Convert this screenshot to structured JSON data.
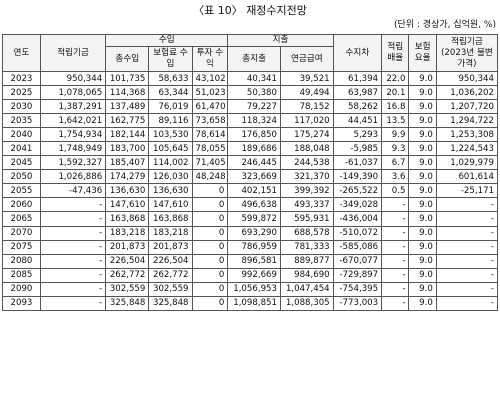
{
  "title": "〈표 10〉 재정수지전망",
  "unit_note": "(단위 : 경상가, 십억원, %)",
  "headers": {
    "year": "연도",
    "reserve": "적립기금",
    "income_group": "수입",
    "income_total": "총수입",
    "premium_income": "보험료 수입",
    "investment_income": "투자 수익",
    "expense_group": "지출",
    "expense_total": "총지출",
    "pension_payment": "연금급여",
    "balance": "수지차",
    "reserve_ratio": "적립 배율",
    "premium_rate": "보험 요율",
    "reserve_2023": "적립기금 (2023년 불변가격)"
  },
  "rows": [
    [
      "2023",
      "950,344",
      "101,735",
      "58,633",
      "43,102",
      "40,341",
      "39,521",
      "61,394",
      "22.0",
      "9.0",
      "950,344"
    ],
    [
      "2025",
      "1,078,065",
      "114,368",
      "63,344",
      "51,023",
      "50,380",
      "49,494",
      "63,987",
      "20.1",
      "9.0",
      "1,036,202"
    ],
    [
      "2030",
      "1,387,291",
      "137,489",
      "76,019",
      "61,470",
      "79,227",
      "78,152",
      "58,262",
      "16.8",
      "9.0",
      "1,207,720"
    ],
    [
      "2035",
      "1,642,021",
      "162,775",
      "89,116",
      "73,658",
      "118,324",
      "117,020",
      "44,451",
      "13.5",
      "9.0",
      "1,294,722"
    ],
    [
      "2040",
      "1,754,934",
      "182,144",
      "103,530",
      "78,614",
      "176,850",
      "175,274",
      "5,293",
      "9.9",
      "9.0",
      "1,253,308"
    ],
    [
      "2041",
      "1,748,949",
      "183,700",
      "105,645",
      "78,055",
      "189,686",
      "188,048",
      "-5,985",
      "9.3",
      "9.0",
      "1,224,543"
    ],
    [
      "2045",
      "1,592,327",
      "185,407",
      "114,002",
      "71,405",
      "246,445",
      "244,538",
      "-61,037",
      "6.7",
      "9.0",
      "1,029,979"
    ],
    [
      "2050",
      "1,026,886",
      "174,279",
      "126,030",
      "48,248",
      "323,669",
      "321,370",
      "-149,390",
      "3.6",
      "9.0",
      "601,614"
    ],
    [
      "2055",
      "-47,436",
      "136,630",
      "136,630",
      "0",
      "402,151",
      "399,392",
      "-265,522",
      "0.5",
      "9.0",
      "-25,171"
    ],
    [
      "2060",
      "-",
      "147,610",
      "147,610",
      "0",
      "496,638",
      "493,337",
      "-349,028",
      "-",
      "9.0",
      "-"
    ],
    [
      "2065",
      "-",
      "163,868",
      "163,868",
      "0",
      "599,872",
      "595,931",
      "-436,004",
      "-",
      "9.0",
      "-"
    ],
    [
      "2070",
      "-",
      "183,218",
      "183,218",
      "0",
      "693,290",
      "688,578",
      "-510,072",
      "-",
      "9.0",
      "-"
    ],
    [
      "2075",
      "-",
      "201,873",
      "201,873",
      "0",
      "786,959",
      "781,333",
      "-585,086",
      "-",
      "9.0",
      "-"
    ],
    [
      "2080",
      "-",
      "226,504",
      "226,504",
      "0",
      "896,581",
      "889,877",
      "-670,077",
      "-",
      "9.0",
      "-"
    ],
    [
      "2085",
      "-",
      "262,772",
      "262,772",
      "0",
      "992,669",
      "984,690",
      "-729,897",
      "-",
      "9.0",
      "-"
    ],
    [
      "2090",
      "-",
      "302,559",
      "302,559",
      "0",
      "1,056,953",
      "1,047,454",
      "-754,395",
      "-",
      "9.0",
      "-"
    ],
    [
      "2093",
      "-",
      "325,848",
      "325,848",
      "0",
      "1,098,851",
      "1,088,305",
      "-773,003",
      "-",
      "9.0",
      "-"
    ]
  ]
}
